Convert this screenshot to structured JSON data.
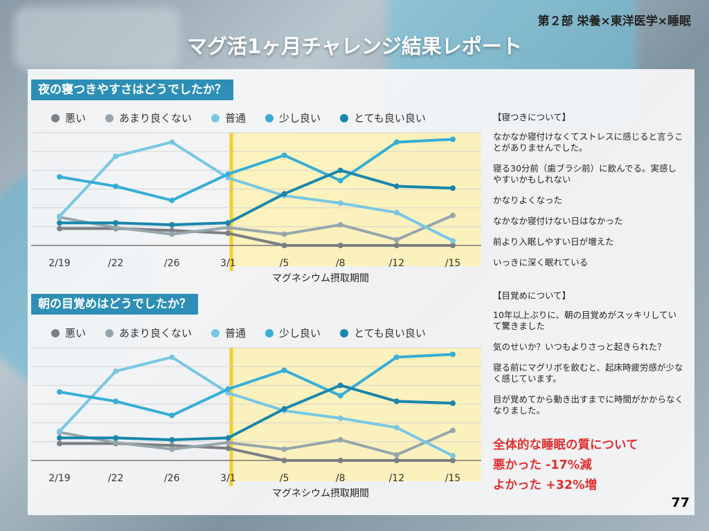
{
  "header": {
    "part_label": "第２部 栄養×東洋医学×睡眠",
    "title": "マグ活1ヶ月チャレンジ結果レポート"
  },
  "legend": [
    {
      "label": "悪い",
      "color": "#7b7f83"
    },
    {
      "label": "あまり良くない",
      "color": "#97a6ad"
    },
    {
      "label": "普通",
      "color": "#78c7e3"
    },
    {
      "label": "少し良い",
      "color": "#36aed6"
    },
    {
      "label": "とても良い良い",
      "color": "#1a86ac"
    }
  ],
  "chart_data": [
    {
      "type": "line",
      "title": "夜の寝つきやすさはどうでしたか？",
      "xlabel": "マグネシウム摂取期間",
      "ylabel": "",
      "categories": [
        "2/19",
        "/22",
        "/26",
        "3/1",
        "/5",
        "/8",
        "/12",
        "/15"
      ],
      "ylim": [
        0,
        12
      ],
      "highlight_from": "3/1",
      "series": [
        {
          "name": "悪い",
          "values": [
            1.8,
            1.8,
            1.6,
            1.3,
            0.0,
            0.0,
            0.0,
            0.0
          ]
        },
        {
          "name": "あまり良くない",
          "values": [
            3.0,
            1.9,
            1.2,
            1.9,
            1.2,
            2.2,
            0.6,
            3.2
          ]
        },
        {
          "name": "普通",
          "values": [
            3.1,
            9.5,
            11.0,
            7.2,
            5.3,
            4.5,
            3.5,
            0.5
          ]
        },
        {
          "name": "少し良い",
          "values": [
            7.3,
            6.3,
            4.8,
            7.6,
            9.6,
            6.9,
            11.0,
            11.3
          ]
        },
        {
          "name": "とても良い良い",
          "values": [
            2.4,
            2.4,
            2.2,
            2.4,
            5.5,
            8.0,
            6.3,
            6.1
          ]
        }
      ]
    },
    {
      "type": "line",
      "title": "朝の目覚めはどうでしたか？",
      "xlabel": "マグネシウム摂取期間",
      "ylabel": "",
      "categories": [
        "2/19",
        "/22",
        "/26",
        "3/1",
        "/5",
        "/8",
        "/12",
        "/15"
      ],
      "ylim": [
        0,
        12
      ],
      "highlight_from": "3/1",
      "series": [
        {
          "name": "悪い",
          "values": [
            1.8,
            1.8,
            1.6,
            1.3,
            0.0,
            0.0,
            0.0,
            0.0
          ]
        },
        {
          "name": "あまり良くない",
          "values": [
            3.0,
            1.9,
            1.2,
            1.9,
            1.2,
            2.2,
            0.6,
            3.2
          ]
        },
        {
          "name": "普通",
          "values": [
            3.1,
            9.5,
            11.0,
            7.2,
            5.3,
            4.5,
            3.5,
            0.5
          ]
        },
        {
          "name": "少し良い",
          "values": [
            7.3,
            6.3,
            4.8,
            7.6,
            9.6,
            6.9,
            11.0,
            11.3
          ]
        },
        {
          "name": "とても良い良い",
          "values": [
            2.4,
            2.4,
            2.2,
            2.4,
            5.5,
            8.0,
            6.3,
            6.1
          ]
        }
      ]
    }
  ],
  "sleep_onset_comments": {
    "heading": "【寝つきについて】",
    "items": [
      "なかなか寝付けなくてストレスに感じると言うことがありませんでした。",
      "寝る30分前（歯ブラシ前）に飲んでる。実感しやすいかもしれない",
      "かなりよくなった",
      "なかなか寝付けない日はなかった",
      "前より入眠しやすい日が増えた",
      "いっきに深く眠れている"
    ]
  },
  "waking_comments": {
    "heading": "【目覚めについて】",
    "items": [
      "10年以上ぶりに、朝の目覚めがスッキリしていて驚きました",
      "気のせいか？いつもよりさっと起きられた？",
      "寝る前にマグリボを飲むと、起床時疲労感が少なく感じています。",
      "目が覚めてから動き出すまでに時間がかからなくなりました。"
    ]
  },
  "summary": {
    "title": "全体的な睡眠の質について",
    "bad": "悪かった -17%減",
    "good": "よかった +32%増"
  },
  "page_number": "77"
}
